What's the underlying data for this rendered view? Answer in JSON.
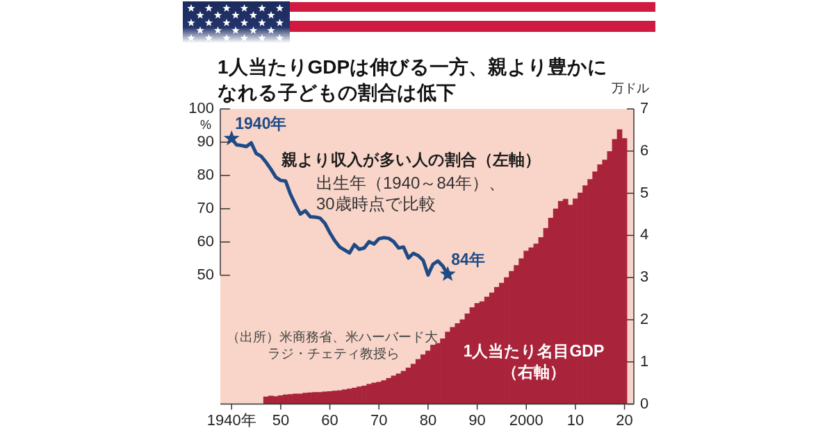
{
  "chart_data": {
    "type": "bar",
    "title": "1人当たりGDPは伸びる一方、親より豊かになれる子どもの割合は低下",
    "ylabel": "%",
    "y2label": "万ドル",
    "annotations": [
      {
        "text": "1940年",
        "x": 1940,
        "y": 91.1
      },
      {
        "text": "84年",
        "x": 1984,
        "y": 50.3
      },
      "出生年（1940～84年）、",
      "30歳時点で比較",
      "（出所）米商務省、米ハーバード大",
      "ラジ・チェティ教授ら"
    ],
    "xlim": [
      1937.7,
      2021.9
    ],
    "xticks": [
      {
        "value": 1940,
        "label": "1940年"
      },
      {
        "value": 1950,
        "label": "50"
      },
      {
        "value": 1960,
        "label": "60"
      },
      {
        "value": 1970,
        "label": "70"
      },
      {
        "value": 1980,
        "label": "80"
      },
      {
        "value": 1990,
        "label": "90"
      },
      2000,
      {
        "value": 2010,
        "label": "10"
      },
      {
        "value": 2020,
        "label": "20"
      }
    ],
    "ylim": [
      11.3,
      100
    ],
    "yticks": [
      50,
      60,
      70,
      80,
      90,
      100
    ],
    "y2lim": [
      0,
      7
    ],
    "y2ticks": [
      0,
      1,
      2,
      3,
      4,
      5,
      6,
      7
    ],
    "grid": false,
    "legend": false,
    "series": [
      {
        "name": "1人当たり名目GDP（右軸）",
        "color": "#a9243a",
        "axis": "y2",
        "x": [
          1947,
          1948,
          1949,
          1950,
          1951,
          1952,
          1953,
          1954,
          1955,
          1956,
          1957,
          1958,
          1959,
          1960,
          1961,
          1962,
          1963,
          1964,
          1965,
          1966,
          1967,
          1968,
          1969,
          1970,
          1971,
          1972,
          1973,
          1974,
          1975,
          1976,
          1977,
          1978,
          1979,
          1980,
          1981,
          1982,
          1983,
          1984,
          1985,
          1986,
          1987,
          1988,
          1989,
          1990,
          1991,
          1992,
          1993,
          1994,
          1995,
          1996,
          1997,
          1998,
          1999,
          2000,
          2001,
          2002,
          2003,
          2004,
          2005,
          2006,
          2007,
          2008,
          2009,
          2010,
          2011,
          2012,
          2013,
          2014,
          2015,
          2016,
          2017,
          2018,
          2019,
          2020
        ],
        "values": [
          0.17,
          0.19,
          0.18,
          0.2,
          0.22,
          0.23,
          0.24,
          0.24,
          0.26,
          0.27,
          0.28,
          0.28,
          0.29,
          0.3,
          0.31,
          0.32,
          0.34,
          0.36,
          0.38,
          0.41,
          0.43,
          0.47,
          0.5,
          0.52,
          0.56,
          0.61,
          0.67,
          0.72,
          0.78,
          0.86,
          0.95,
          1.06,
          1.17,
          1.26,
          1.4,
          1.44,
          1.55,
          1.71,
          1.82,
          1.91,
          2.0,
          2.14,
          2.29,
          2.39,
          2.43,
          2.54,
          2.64,
          2.77,
          2.87,
          3.0,
          3.15,
          3.29,
          3.45,
          3.63,
          3.71,
          3.8,
          3.95,
          4.17,
          4.41,
          4.63,
          4.81,
          4.86,
          4.72,
          4.87,
          5.01,
          5.18,
          5.33,
          5.51,
          5.68,
          5.79,
          5.99,
          6.28,
          6.51,
          6.3
        ]
      },
      {
        "type": "line",
        "name": "親より収入が多い人の割合（左軸）",
        "color": "#1f4a85",
        "axis": "y",
        "marker": "none",
        "x": [
          1940,
          1941,
          1942,
          1943,
          1944,
          1945,
          1946,
          1947,
          1948,
          1949,
          1950,
          1951,
          1952,
          1953,
          1954,
          1955,
          1956,
          1957,
          1958,
          1959,
          1960,
          1961,
          1962,
          1963,
          1964,
          1965,
          1966,
          1967,
          1968,
          1969,
          1970,
          1971,
          1972,
          1973,
          1974,
          1975,
          1976,
          1977,
          1978,
          1979,
          1980,
          1981,
          1982,
          1983,
          1984
        ],
        "values": [
          91.1,
          89.2,
          89.0,
          88.7,
          89.8,
          86.6,
          85.8,
          84.0,
          81.9,
          79.5,
          78.5,
          78.3,
          74.3,
          71.2,
          68.4,
          69.4,
          67.6,
          67.5,
          67.2,
          65.6,
          62.8,
          60.4,
          58.5,
          57.6,
          56.7,
          59.2,
          57.8,
          58.2,
          60.1,
          59.4,
          61.0,
          61.3,
          61.1,
          60.1,
          58.2,
          58.5,
          55.2,
          56.6,
          55.9,
          54.5,
          50.1,
          53.3,
          54.3,
          52.8,
          50.3
        ]
      },
      {
        "type": "scatter",
        "color": "#1f4a85",
        "axis": "y",
        "marker": "star",
        "x": [
          1940,
          1984
        ],
        "values": [
          91.1,
          50.3
        ]
      }
    ]
  }
}
